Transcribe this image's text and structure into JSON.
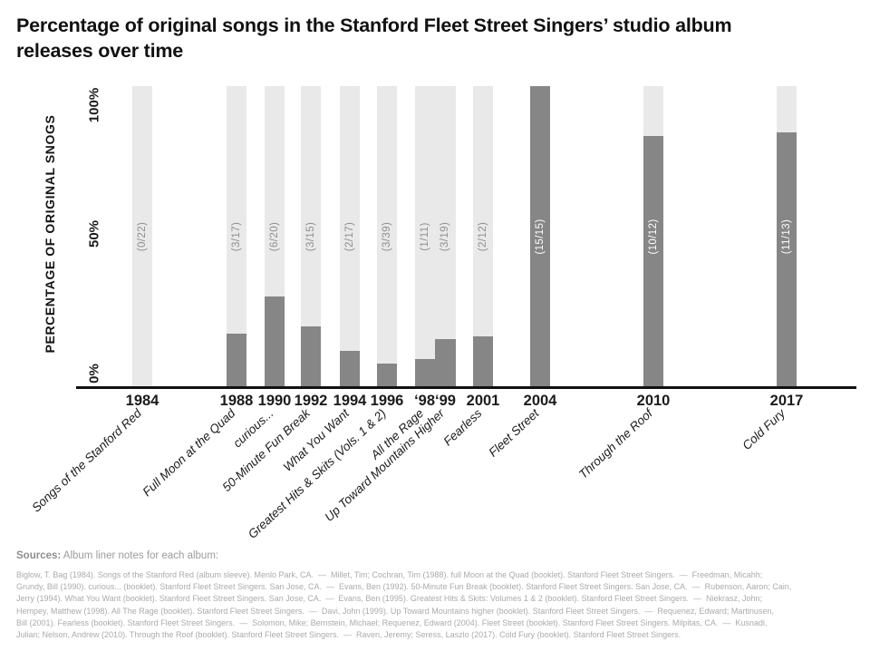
{
  "title": "Percentage of original songs in the Stanford Fleet Street Singers’ studio album releases over time",
  "y_axis": {
    "label": "PERCENTAGE OF ORIGINAL SNOGS",
    "ticks": [
      "0%",
      "50%",
      "100%"
    ]
  },
  "chart_data": {
    "type": "bar",
    "title": "Percentage of original songs in the Stanford Fleet Street Singers’ studio album releases over time",
    "xlabel": "",
    "ylabel": "PERCENTAGE OF ORIGINAL SNOGS",
    "ylim": [
      0,
      100
    ],
    "ytick_labels": [
      "0%",
      "50%",
      "100%"
    ],
    "grid": false,
    "legend": false,
    "groups": [
      {
        "year": "1984",
        "segments": [
          {
            "album": "Songs of the Stanford Red",
            "fraction": "(0/22)",
            "originals": 0,
            "total": 22,
            "percent": 0
          }
        ]
      },
      {
        "year": "1988",
        "segments": [
          {
            "album": "Full Moon at the Quad",
            "fraction": "(3/17)",
            "originals": 3,
            "total": 17,
            "percent": 17.6
          }
        ]
      },
      {
        "year": "1990",
        "segments": [
          {
            "album": "curious...",
            "fraction": "(6/20)",
            "originals": 6,
            "total": 20,
            "percent": 30
          }
        ]
      },
      {
        "year": "1992",
        "segments": [
          {
            "album": "50-Minute Fun Break",
            "fraction": "(3/15)",
            "originals": 3,
            "total": 15,
            "percent": 20
          }
        ]
      },
      {
        "year": "1994",
        "segments": [
          {
            "album": "What You Want",
            "fraction": "(2/17)",
            "originals": 2,
            "total": 17,
            "percent": 11.8
          }
        ]
      },
      {
        "year": "1996",
        "segments": [
          {
            "album": "Greatest Hits & Skits (Vols. 1 & 2)",
            "fraction": "(3/39)",
            "originals": 3,
            "total": 39,
            "percent": 7.7
          }
        ]
      },
      {
        "year": "‘98‘99",
        "segments": [
          {
            "album": "All the Rage",
            "fraction": "(1/11)",
            "originals": 1,
            "total": 11,
            "percent": 9.1
          },
          {
            "album": "Up Toward Mountains Higher",
            "fraction": "(3/19)",
            "originals": 3,
            "total": 19,
            "percent": 15.8
          }
        ]
      },
      {
        "year": "2001",
        "segments": [
          {
            "album": "Fearless",
            "fraction": "(2/12)",
            "originals": 2,
            "total": 12,
            "percent": 16.7
          }
        ]
      },
      {
        "year": "2004",
        "segments": [
          {
            "album": "Fleet Street",
            "fraction": "(15/15)",
            "originals": 15,
            "total": 15,
            "percent": 100
          }
        ]
      },
      {
        "year": "2010",
        "segments": [
          {
            "album": "Through the Roof",
            "fraction": "(10/12)",
            "originals": 10,
            "total": 12,
            "percent": 83.3
          }
        ]
      },
      {
        "year": "2017",
        "segments": [
          {
            "album": "Cold Fury",
            "fraction": "(11/13)",
            "originals": 11,
            "total": 13,
            "percent": 84.6
          }
        ]
      }
    ]
  },
  "sources": {
    "label": "Sources:",
    "intro": " Album liner notes for each album:",
    "lines": [
      "Biglow, T. Bag (1984). Songs of the Stanford Red (album sleeve). Menlo Park, CA.  —  Millet, Tim; Cochran, Tim (1988). full Moon at the Quad (booklet). Stanford Fleet Street Singers.  —  Freedman, Micahh;",
      "Grundy, Bill (1990). curious... (booklet). Stanford Fleet Street Singers. San Jose, CA.  —  Evans, Ben (1992). 50-Minute Fun Break (booklet). Stanford Fleet Street Singers. San Jose, CA.  —  Rubenson, Aaron; Cain,",
      "Jerry (1994). What You Want (booklet). Stanford Fleet Street Singers. San Jose, CA.  —  Evans, Ben (1995). Greatest Hits & Skits: Volumes 1 & 2 (booklet). Stanford Fleet Street Singers.  —  Niekrasz, John;",
      "Hempey, Matthew (1998). All The Rage (booklet). Stanford Fleet Street Singers.  —  Davi, John (1999). Up Toward Mountains higher (booklet). Stanford Fleet Street Singers.  —  Requenez, Edward; Martinusen,",
      "Bill (2001). Fearless (booklet). Stanford Fleet Street Singers.  —  Solomon, Mike; Bernstein, Michael; Requenez, Edward (2004). Fleet Street (booklet). Stanford Fleet Street Singers. Milpitas, CA.  —  Kusnadi,",
      "Julian; Nelson, Andrew (2010). Through the Roof (booklet). Stanford Fleet Street Singers.  —  Raven, Jeremy; Seress, Laszlo (2017). Cold Fury (booklet). Stanford Fleet Street Singers."
    ]
  },
  "colors": {
    "bar_track": "#e9e9e9",
    "bar_fill": "#868686",
    "fraction_on_track": "#8f8f8f",
    "fraction_on_fill": "#ffffff",
    "axis": "#111111",
    "text": "#111111",
    "muted_text": "#ababab"
  }
}
